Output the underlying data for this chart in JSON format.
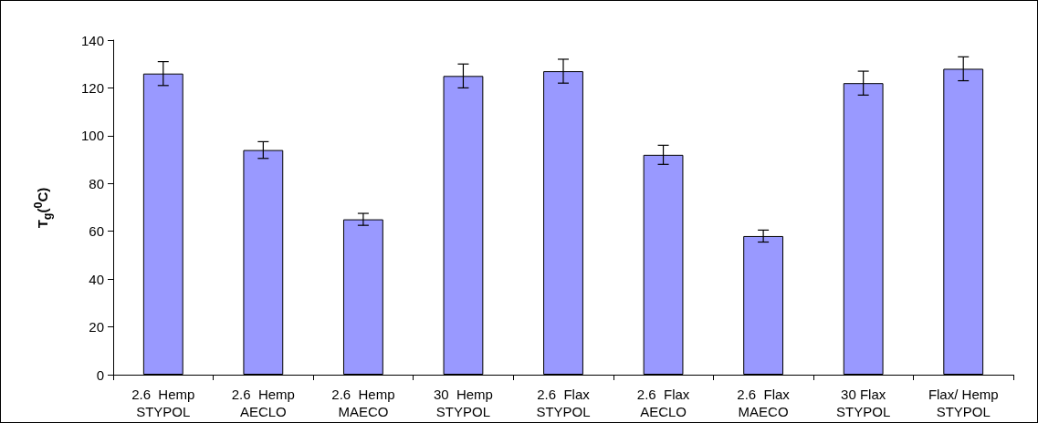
{
  "chart_data": {
    "type": "bar",
    "ylabel": "T$_{g}$($^{0}$C)",
    "categories": [
      "2.6  Hemp\nSTYPOL",
      "2.6  Hemp\nAECLO",
      "2.6  Hemp\nMAECO",
      "30  Hemp\nSTYPOL",
      "2.6  Flax\nSTYPOL",
      "2.6  Flax\nAECLO",
      "2.6  Flax\nMAECO",
      "30 Flax\nSTYPOL",
      "Flax/ Hemp\nSTYPOL"
    ],
    "values": [
      126,
      94,
      65,
      125,
      127,
      92,
      58,
      122,
      128
    ],
    "errors": [
      5,
      3.5,
      2.5,
      5,
      5,
      4,
      2.5,
      5,
      5
    ],
    "color": "#9999ff",
    "ylim": [
      0,
      140
    ],
    "yticks": [
      0,
      20,
      40,
      60,
      80,
      100,
      120,
      140
    ]
  }
}
